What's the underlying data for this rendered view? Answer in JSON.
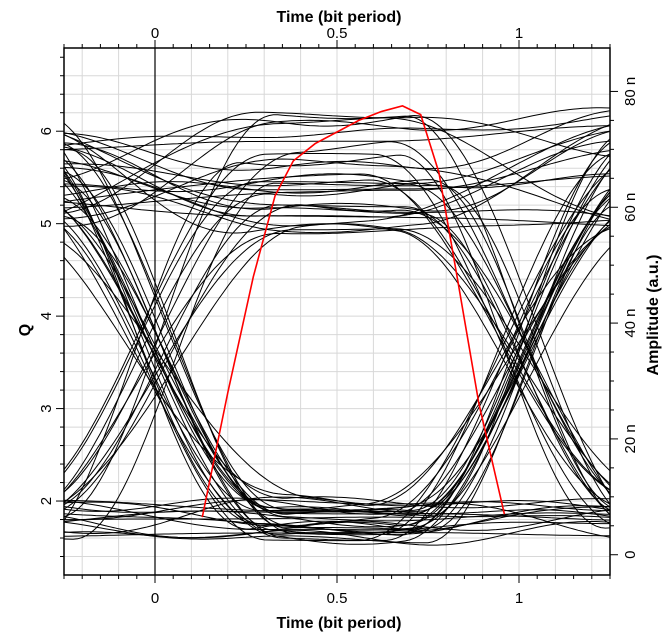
{
  "chart_data": {
    "type": "line",
    "title": "",
    "x_top_label": "Time (bit period)",
    "x_bottom_label": "Time (bit period)",
    "y_left_label": "Q",
    "y_right_label": "Amplitude (a.u.)",
    "xlim": [
      -0.25,
      1.25
    ],
    "ylim_left": [
      1.2,
      6.9
    ],
    "ylim_right": [
      -3.5e-06,
      8.75e-05
    ],
    "x_ticks": [
      0,
      0.5,
      1
    ],
    "x_tick_labels": [
      "0",
      "0.5",
      "1"
    ],
    "y_left_ticks": [
      2,
      3,
      4,
      5,
      6
    ],
    "y_left_tick_labels": [
      "2",
      "3",
      "4",
      "5",
      "6"
    ],
    "y_right_ticks": [
      0,
      2e-05,
      4e-05,
      6e-05,
      8e-05
    ],
    "y_right_tick_labels": [
      "0",
      "20 n",
      "40 n",
      "60 n",
      "80 n"
    ],
    "grid": true,
    "eye_diagram": {
      "description_levels": {
        "low_level_mean": 1.8,
        "high_level_mean": 5.55
      },
      "crossings_at_x": [
        0.0,
        1.0
      ],
      "crossing_level": 3.6
    },
    "series": [
      {
        "name": "",
        "color": "#ff0000",
        "axis": "right",
        "x": [
          0.13,
          0.2,
          0.27,
          0.33,
          0.38,
          0.44,
          0.5,
          0.56,
          0.62,
          0.68,
          0.73,
          0.78,
          0.83,
          0.89,
          0.96
        ],
        "y": [
          6.5e-06,
          2.8e-05,
          4.8e-05,
          6.2e-05,
          6.8e-05,
          7.1e-05,
          7.3e-05,
          7.5e-05,
          7.65e-05,
          7.75e-05,
          7.6e-05,
          6.6e-05,
          4.8e-05,
          2.6e-05,
          7e-06
        ]
      }
    ]
  }
}
